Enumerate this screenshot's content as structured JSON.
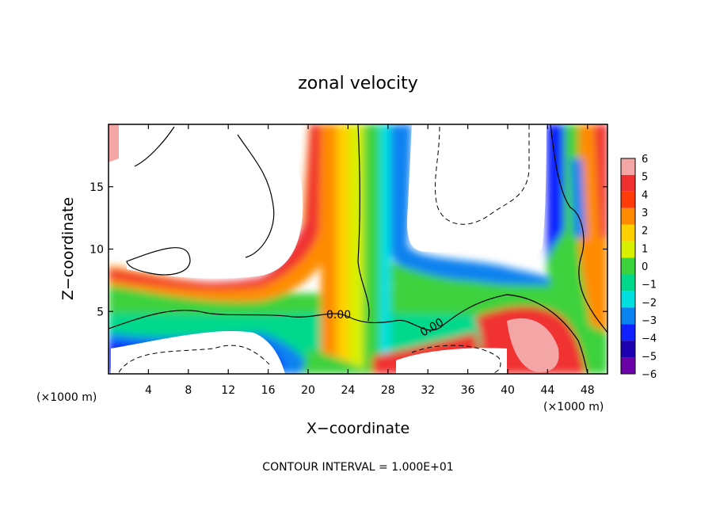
{
  "chart_data": {
    "type": "heatmap",
    "title": "zonal velocity",
    "xlabel": "X−coordinate",
    "ylabel": "Z−coordinate",
    "x_unit_label": "(×1000 m)",
    "x_unit_label_right": "(×1000 m)",
    "xlim": [
      0,
      50
    ],
    "ylim": [
      0,
      20
    ],
    "x_ticks": [
      "4",
      "8",
      "12",
      "16",
      "20",
      "24",
      "28",
      "32",
      "36",
      "40",
      "44",
      "48"
    ],
    "y_ticks": [
      "5",
      "10",
      "15"
    ],
    "colorbar_ticks": [
      "6",
      "5",
      "4",
      "3",
      "2",
      "1",
      "0",
      "−1",
      "−2",
      "−3",
      "−4",
      "−5",
      "−6"
    ],
    "colorbar_colors": [
      "#f4a6a6",
      "#f03030",
      "#ff3b0a",
      "#ff8c00",
      "#ffd000",
      "#d8f000",
      "#3cd23c",
      "#00d88c",
      "#00e0e0",
      "#0a82f0",
      "#1020ff",
      "#1c00b0",
      "#6a00a8"
    ],
    "contour_labels": [
      "0.00",
      "0.00"
    ],
    "footer": "CONTOUR INTERVAL = 1.000E+01"
  }
}
